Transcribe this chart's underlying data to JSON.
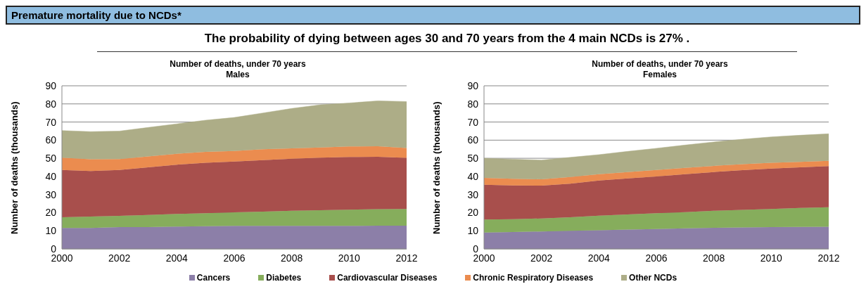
{
  "chart_data": [
    {
      "type": "area",
      "title": "Number of deaths, under 70 years",
      "subtitle": "Males",
      "ylabel": "Number of deaths (thousands)",
      "annotations": [
        "Premature mortality due to NCDs*",
        "The probability of dying between ages 30 and 70 years from the 4 main NCDs is 27% ."
      ],
      "stacked": true,
      "x": [
        2000,
        2001,
        2002,
        2003,
        2004,
        2005,
        2006,
        2007,
        2008,
        2009,
        2010,
        2011,
        2012
      ],
      "xlim": [
        2000,
        2012
      ],
      "xticks": [
        2000,
        2002,
        2004,
        2006,
        2008,
        2010,
        2012
      ],
      "ylim": [
        0,
        90
      ],
      "yticks": [
        0,
        10,
        20,
        30,
        40,
        50,
        60,
        70,
        80,
        90
      ],
      "grid": "y",
      "legend": "bottom",
      "series": [
        {
          "name": "Cancers",
          "color": "#8c7fa8",
          "values": [
            11.5,
            11.5,
            12,
            12,
            12.3,
            12.5,
            12.7,
            12.7,
            12.7,
            12.7,
            12.7,
            12.8,
            12.8
          ]
        },
        {
          "name": "Diabetes",
          "color": "#86ad5c",
          "values": [
            6,
            6.3,
            6.2,
            6.7,
            7,
            7.2,
            7.5,
            7.9,
            8.3,
            8.6,
            8.9,
            9.1,
            9.2
          ]
        },
        {
          "name": "Cardiovascular Diseases",
          "color": "#a84f4c",
          "values": [
            26,
            25.2,
            25.3,
            26.3,
            27.2,
            27.8,
            28,
            28.4,
            28.8,
            29,
            29.1,
            28.9,
            28.2
          ]
        },
        {
          "name": "Chronic Respiratory Diseases",
          "color": "#eb8c4f",
          "values": [
            6.8,
            6.5,
            6.1,
            6,
            6,
            6,
            5.8,
            6,
            5.7,
            5.7,
            5.8,
            5.8,
            5.5
          ]
        },
        {
          "name": "Other NCDs",
          "color": "#adad87",
          "values": [
            15,
            15.2,
            15.4,
            16,
            16.5,
            17.5,
            18.5,
            20,
            22,
            23.5,
            24,
            25.1,
            25.6
          ]
        }
      ]
    },
    {
      "type": "area",
      "title": "Number of deaths, under 70 years",
      "subtitle": "Females",
      "ylabel": "Number of deaths (thousands)",
      "stacked": true,
      "x": [
        2000,
        2001,
        2002,
        2003,
        2004,
        2005,
        2006,
        2007,
        2008,
        2009,
        2010,
        2011,
        2012
      ],
      "xlim": [
        2000,
        2012
      ],
      "xticks": [
        2000,
        2002,
        2004,
        2006,
        2008,
        2010,
        2012
      ],
      "ylim": [
        0,
        90
      ],
      "yticks": [
        0,
        10,
        20,
        30,
        40,
        50,
        60,
        70,
        80,
        90
      ],
      "grid": "y",
      "legend": "bottom",
      "series": [
        {
          "name": "Cancers",
          "color": "#8c7fa8",
          "values": [
            9,
            9.3,
            9.6,
            10,
            10.3,
            10.7,
            11,
            11.3,
            11.6,
            11.8,
            12,
            12.1,
            12.2
          ]
        },
        {
          "name": "Diabetes",
          "color": "#86ad5c",
          "values": [
            7.2,
            7.1,
            7.2,
            7.5,
            8,
            8.3,
            8.7,
            9,
            9.4,
            9.7,
            10,
            10.5,
            10.8
          ]
        },
        {
          "name": "Cardiovascular Diseases",
          "color": "#a84f4c",
          "values": [
            19.2,
            18.6,
            18.1,
            18.5,
            19.4,
            19.9,
            20.3,
            20.9,
            21.4,
            21.9,
            22.3,
            22.4,
            22.7
          ]
        },
        {
          "name": "Chronic Respiratory Diseases",
          "color": "#eb8c4f",
          "values": [
            3.8,
            3.7,
            3.5,
            3.7,
            3.5,
            3.5,
            3.5,
            3.5,
            3.4,
            3.3,
            3.2,
            3,
            2.9
          ]
        },
        {
          "name": "Other NCDs",
          "color": "#adad87",
          "values": [
            10.8,
            10.8,
            10.6,
            10.8,
            10.8,
            11.4,
            12,
            12.6,
            13.2,
            13.8,
            14.3,
            14.7,
            14.9
          ]
        }
      ]
    }
  ]
}
